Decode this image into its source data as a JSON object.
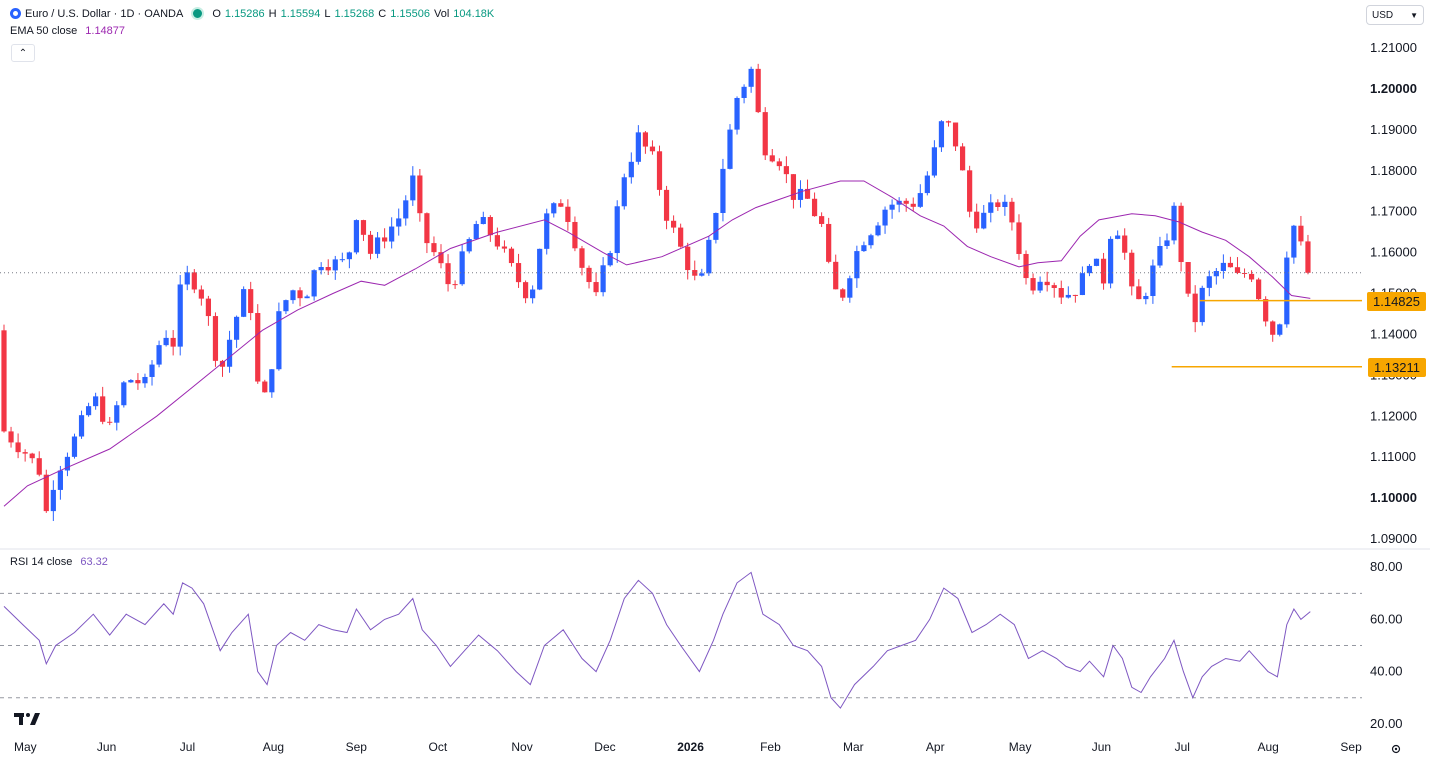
{
  "header": {
    "symbol": "Euro / U.S. Dollar · 1D · OANDA",
    "o_label": "O",
    "o_value": "1.15286",
    "h_label": "H",
    "h_value": "1.15594",
    "l_label": "L",
    "l_value": "1.15268",
    "c_label": "C",
    "c_value": "1.15506",
    "vol_label": "Vol",
    "vol_value": "104.18K"
  },
  "ema_legend": {
    "label": "EMA 50 close",
    "value": "1.14877"
  },
  "rsi_legend": {
    "label": "RSI 14 close",
    "value": "63.32"
  },
  "currency": {
    "value": "USD"
  },
  "levels": {
    "upper": "1.14825",
    "lower": "1.13211"
  },
  "colors": {
    "up": "#2962ff",
    "down": "#f23645",
    "ema": "#9c27b0",
    "rsi": "#7e57c2",
    "level": "#f7a600",
    "live": "#089981"
  },
  "icons": {
    "symbol": "euro-flag-icon",
    "collapse": "chevron-up-icon",
    "settings": "gear-icon",
    "logo": "tradingview-logo-icon"
  },
  "chart_data": {
    "type": "candlestick",
    "title": "Euro / U.S. Dollar · 1D · OANDA",
    "price_axis_labels": [
      "1.21000",
      "1.20000",
      "1.19000",
      "1.18000",
      "1.17000",
      "1.16000",
      "1.15000",
      "1.14000",
      "1.13000",
      "1.12000",
      "1.11000",
      "1.10000",
      "1.09000"
    ],
    "price_axis_bold": [
      "1.20000",
      "1.10000"
    ],
    "ylim": [
      1.09,
      1.21
    ],
    "time_axis_labels": [
      "May",
      "Jun",
      "Jul",
      "Aug",
      "Sep",
      "Oct",
      "Nov",
      "Dec",
      "2026",
      "Feb",
      "Mar",
      "Apr",
      "May",
      "Jun",
      "Jul",
      "Aug",
      "Sep"
    ],
    "last_close": 1.15506,
    "ema_path_points": [
      [
        0,
        1.098
      ],
      [
        10,
        1.103
      ],
      [
        25,
        1.107
      ],
      [
        45,
        1.112
      ],
      [
        65,
        1.12
      ],
      [
        80,
        1.127
      ],
      [
        95,
        1.134
      ],
      [
        110,
        1.141
      ],
      [
        125,
        1.146
      ],
      [
        140,
        1.15
      ],
      [
        152,
        1.153
      ],
      [
        162,
        1.152
      ],
      [
        175,
        1.156
      ],
      [
        190,
        1.161
      ],
      [
        210,
        1.165
      ],
      [
        230,
        1.168
      ],
      [
        240,
        1.165
      ],
      [
        255,
        1.16
      ],
      [
        265,
        1.157
      ],
      [
        280,
        1.159
      ],
      [
        300,
        1.164
      ],
      [
        310,
        1.168
      ],
      [
        320,
        1.171
      ],
      [
        330,
        1.173
      ],
      [
        340,
        1.175
      ],
      [
        356,
        1.1775
      ],
      [
        366,
        1.1775
      ],
      [
        378,
        1.1735
      ],
      [
        390,
        1.169
      ],
      [
        400,
        1.1665
      ],
      [
        410,
        1.1615
      ],
      [
        420,
        1.159
      ],
      [
        432,
        1.1565
      ],
      [
        440,
        1.1575
      ],
      [
        450,
        1.158
      ],
      [
        458,
        1.164
      ],
      [
        466,
        1.168
      ],
      [
        480,
        1.1695
      ],
      [
        490,
        1.169
      ],
      [
        500,
        1.1675
      ],
      [
        510,
        1.165
      ],
      [
        520,
        1.163
      ],
      [
        530,
        1.159
      ],
      [
        540,
        1.154
      ],
      [
        548,
        1.1495
      ],
      [
        556,
        1.1488
      ]
    ],
    "level_lines": [
      {
        "price": 1.14825,
        "x_start": 509
      },
      {
        "price": 1.13211,
        "x_start": 497
      }
    ],
    "rsi_axis_labels": [
      "80.00",
      "60.00",
      "40.00",
      "20.00"
    ],
    "rsi_ylim": [
      18,
      82
    ],
    "rsi_bands": [
      70,
      50,
      30
    ],
    "rsi": [
      [
        0,
        65
      ],
      [
        8,
        58
      ],
      [
        15,
        52
      ],
      [
        18,
        43
      ],
      [
        22,
        50
      ],
      [
        30,
        55
      ],
      [
        38,
        62
      ],
      [
        45,
        54
      ],
      [
        52,
        62
      ],
      [
        60,
        58
      ],
      [
        68,
        66
      ],
      [
        72,
        62
      ],
      [
        76,
        74
      ],
      [
        80,
        72
      ],
      [
        85,
        66
      ],
      [
        92,
        48
      ],
      [
        97,
        55
      ],
      [
        104,
        62
      ],
      [
        108,
        40
      ],
      [
        112,
        35
      ],
      [
        116,
        50
      ],
      [
        122,
        55
      ],
      [
        128,
        52
      ],
      [
        134,
        58
      ],
      [
        140,
        56
      ],
      [
        146,
        55
      ],
      [
        150,
        64
      ],
      [
        156,
        56
      ],
      [
        162,
        60
      ],
      [
        168,
        62
      ],
      [
        174,
        68
      ],
      [
        178,
        56
      ],
      [
        184,
        50
      ],
      [
        190,
        42
      ],
      [
        196,
        48
      ],
      [
        202,
        54
      ],
      [
        210,
        48
      ],
      [
        218,
        40
      ],
      [
        224,
        35
      ],
      [
        230,
        50
      ],
      [
        238,
        56
      ],
      [
        246,
        45
      ],
      [
        252,
        40
      ],
      [
        258,
        52
      ],
      [
        264,
        68
      ],
      [
        270,
        75
      ],
      [
        276,
        70
      ],
      [
        282,
        58
      ],
      [
        288,
        50
      ],
      [
        296,
        40
      ],
      [
        302,
        52
      ],
      [
        306,
        62
      ],
      [
        312,
        74
      ],
      [
        318,
        78
      ],
      [
        323,
        62
      ],
      [
        330,
        58
      ],
      [
        336,
        50
      ],
      [
        342,
        48
      ],
      [
        348,
        42
      ],
      [
        352,
        30
      ],
      [
        356,
        26
      ],
      [
        362,
        35
      ],
      [
        370,
        42
      ],
      [
        376,
        48
      ],
      [
        382,
        50
      ],
      [
        388,
        52
      ],
      [
        394,
        60
      ],
      [
        400,
        72
      ],
      [
        406,
        68
      ],
      [
        412,
        55
      ],
      [
        418,
        58
      ],
      [
        424,
        62
      ],
      [
        430,
        58
      ],
      [
        436,
        45
      ],
      [
        442,
        48
      ],
      [
        448,
        45
      ],
      [
        452,
        42
      ],
      [
        458,
        40
      ],
      [
        462,
        44
      ],
      [
        468,
        38
      ],
      [
        472,
        50
      ],
      [
        476,
        45
      ],
      [
        480,
        34
      ],
      [
        484,
        32
      ],
      [
        488,
        38
      ],
      [
        494,
        45
      ],
      [
        498,
        52
      ],
      [
        502,
        40
      ],
      [
        506,
        30
      ],
      [
        510,
        38
      ],
      [
        514,
        42
      ],
      [
        520,
        45
      ],
      [
        526,
        44
      ],
      [
        530,
        48
      ],
      [
        534,
        44
      ],
      [
        538,
        40
      ],
      [
        542,
        38
      ],
      [
        546,
        58
      ],
      [
        549,
        64
      ],
      [
        552,
        60
      ],
      [
        556,
        63
      ]
    ]
  }
}
